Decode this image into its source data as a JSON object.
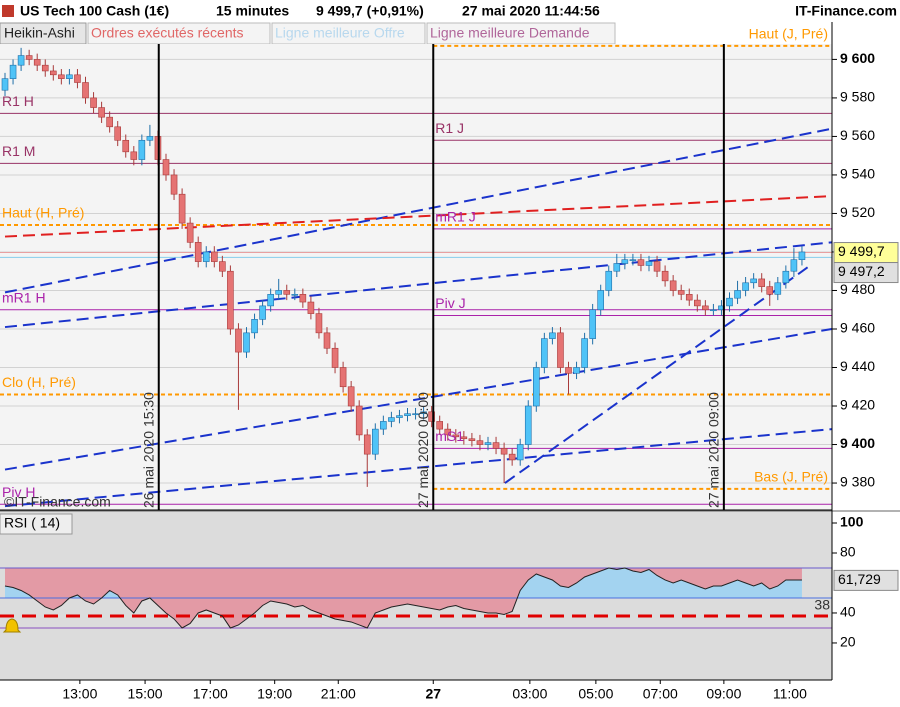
{
  "header": {
    "instrument": "US Tech 100 Cash (1€)",
    "interval": "15 minutes",
    "quote": "9 499,7 (+0,91%)",
    "datetime": "27 mai 2020 11:44:56",
    "brand": "IT-Finance.com"
  },
  "toolbar": [
    "Heikin-Ashi",
    "Ordres exécutés récents",
    "Ligne meilleure Offre",
    "Ligne meilleure Demande"
  ],
  "chart_data": [
    {
      "type": "candlestick",
      "up_color": "#4fc3f7",
      "down_color": "#e57373",
      "grid": true,
      "ylim": [
        9366,
        9608
      ],
      "yticks": [
        {
          "value": 9380,
          "label": "9 380"
        },
        {
          "value": 9400,
          "label": "9 400"
        },
        {
          "value": 9420,
          "label": "9 420"
        },
        {
          "value": 9440,
          "label": "9 440"
        },
        {
          "value": 9460,
          "label": "9 460"
        },
        {
          "value": 9480,
          "label": "9 480"
        },
        {
          "value": 9500,
          "label": "9 500"
        },
        {
          "value": 9520,
          "label": "9 520"
        },
        {
          "value": 9540,
          "label": "9 540"
        },
        {
          "value": 9560,
          "label": "9 560"
        },
        {
          "value": 9580,
          "label": "9 580"
        },
        {
          "value": 9600,
          "label": "9 600"
        }
      ],
      "xticks": [
        {
          "value": 9.3,
          "label": "13:00"
        },
        {
          "value": 17.4,
          "label": "15:00"
        },
        {
          "value": 25.5,
          "label": "17:00"
        },
        {
          "value": 33.5,
          "label": "19:00"
        },
        {
          "value": 41.4,
          "label": "21:00"
        },
        {
          "value": 53.2,
          "label": "27"
        },
        {
          "value": 65.2,
          "label": "03:00"
        },
        {
          "value": 73.4,
          "label": "05:00"
        },
        {
          "value": 81.4,
          "label": "07:00"
        },
        {
          "value": 89.3,
          "label": "09:00"
        },
        {
          "value": 97.5,
          "label": "11:00"
        }
      ],
      "open": [
        9584,
        9590,
        9597,
        9602,
        9600,
        9597,
        9594,
        9592,
        9590,
        9592,
        9588,
        9580,
        9575,
        9570,
        9565,
        9558,
        9552,
        9548,
        9558,
        9560,
        9548,
        9540,
        9530,
        9515,
        9505,
        9495,
        9500,
        9495,
        9490,
        9460,
        9448,
        9458,
        9465,
        9472,
        9478,
        9480,
        9478,
        9478,
        9474,
        9468,
        9458,
        9450,
        9440,
        9430,
        9420,
        9405,
        9395,
        9408,
        9412,
        9414,
        9415,
        9416,
        9416,
        9417,
        9412,
        9408,
        9405,
        9404,
        9403,
        9402,
        9400,
        9401,
        9398,
        9395,
        9392,
        9400,
        9420,
        9440,
        9455,
        9458,
        9440,
        9437,
        9440,
        9455,
        9470,
        9480,
        9490,
        9494,
        9496,
        9496,
        9493,
        9495,
        9490,
        9485,
        9480,
        9478,
        9475,
        9472,
        9470,
        9470,
        9472,
        9476,
        9480,
        9484,
        9486,
        9482,
        9478,
        9484,
        9490,
        9496
      ],
      "high": [
        9593,
        9600,
        9606,
        9605,
        9603,
        9600,
        9597,
        9595,
        9595,
        9595,
        9591,
        9583,
        9578,
        9573,
        9568,
        9561,
        9555,
        9561,
        9566,
        9563,
        9551,
        9543,
        9533,
        9518,
        9508,
        9503,
        9503,
        9498,
        9493,
        9463,
        9461,
        9468,
        9475,
        9481,
        9486,
        9483,
        9481,
        9481,
        9477,
        9471,
        9461,
        9453,
        9443,
        9433,
        9423,
        9408,
        9411,
        9415,
        9417,
        9418,
        9419,
        9419,
        9420,
        9420,
        9415,
        9411,
        9408,
        9407,
        9406,
        9405,
        9404,
        9404,
        9401,
        9398,
        9403,
        9423,
        9443,
        9458,
        9461,
        9461,
        9443,
        9443,
        9458,
        9473,
        9483,
        9493,
        9499,
        9499,
        9499,
        9499,
        9498,
        9498,
        9493,
        9488,
        9483,
        9481,
        9478,
        9475,
        9473,
        9475,
        9479,
        9485,
        9487,
        9489,
        9489,
        9485,
        9487,
        9493,
        9502,
        9503
      ],
      "low": [
        9581,
        9587,
        9594,
        9597,
        9594,
        9591,
        9589,
        9587,
        9587,
        9585,
        9577,
        9572,
        9567,
        9562,
        9555,
        9549,
        9545,
        9545,
        9555,
        9545,
        9537,
        9527,
        9512,
        9502,
        9492,
        9492,
        9492,
        9487,
        9457,
        9418,
        9445,
        9455,
        9462,
        9469,
        9475,
        9475,
        9475,
        9471,
        9465,
        9455,
        9447,
        9437,
        9427,
        9417,
        9402,
        9378,
        9392,
        9405,
        9409,
        9411,
        9412,
        9413,
        9413,
        9409,
        9405,
        9402,
        9401,
        9400,
        9399,
        9397,
        9397,
        9395,
        9380,
        9389,
        9389,
        9397,
        9417,
        9437,
        9452,
        9437,
        9426,
        9434,
        9437,
        9452,
        9467,
        9477,
        9487,
        9491,
        9493,
        9490,
        9490,
        9487,
        9482,
        9477,
        9475,
        9472,
        9469,
        9467,
        9467,
        9467,
        9469,
        9473,
        9477,
        9481,
        9479,
        9472,
        9475,
        9481,
        9487,
        9493
      ],
      "close": [
        9590,
        9597,
        9602,
        9600,
        9597,
        9594,
        9592,
        9590,
        9592,
        9588,
        9580,
        9575,
        9570,
        9565,
        9558,
        9552,
        9548,
        9558,
        9560,
        9548,
        9540,
        9530,
        9515,
        9505,
        9495,
        9500,
        9495,
        9490,
        9460,
        9448,
        9458,
        9465,
        9472,
        9478,
        9480,
        9478,
        9478,
        9474,
        9468,
        9458,
        9450,
        9440,
        9430,
        9420,
        9405,
        9395,
        9408,
        9412,
        9414,
        9415,
        9416,
        9416,
        9417,
        9412,
        9408,
        9405,
        9404,
        9403,
        9402,
        9400,
        9401,
        9398,
        9395,
        9392,
        9400,
        9420,
        9440,
        9455,
        9458,
        9440,
        9437,
        9440,
        9455,
        9470,
        9480,
        9490,
        9494,
        9496,
        9496,
        9493,
        9495,
        9490,
        9485,
        9480,
        9478,
        9475,
        9472,
        9470,
        9470,
        9472,
        9476,
        9480,
        9484,
        9486,
        9482,
        9478,
        9484,
        9490,
        9496,
        9500
      ],
      "levels": [
        {
          "name": "R1 H",
          "value": 9572,
          "color": "#993366",
          "style": "solid",
          "label_side": "left"
        },
        {
          "name": "R1 M",
          "value": 9546,
          "color": "#993366",
          "style": "solid",
          "label_side": "left"
        },
        {
          "name": "Haut (H, Pré)",
          "value": 9514,
          "color": "#ff9900",
          "style": "dashed",
          "label_side": "left"
        },
        {
          "name": "mR1 H",
          "value": 9470,
          "color": "#aa22aa",
          "style": "solid",
          "label_side": "left"
        },
        {
          "name": "Clo (H, Pré)",
          "value": 9426,
          "color": "#ff9900",
          "style": "dashed",
          "label_side": "left"
        },
        {
          "name": "Piv H",
          "value": 9369,
          "color": "#aa22aa",
          "style": "solid",
          "label_side": "left"
        },
        {
          "name": "Haut (J, Pré)",
          "value": 9607,
          "color": "#ff9900",
          "style": "dashed",
          "label_side": "right",
          "start": 53.2
        },
        {
          "name": "R1 J",
          "value": 9558,
          "color": "#993366",
          "style": "solid",
          "label_side": "left",
          "start": 53.2
        },
        {
          "name": "mR1 J",
          "value": 9512,
          "color": "#aa22aa",
          "style": "solid",
          "label_side": "left",
          "start": 53.2
        },
        {
          "name": "Piv J",
          "value": 9467,
          "color": "#aa22aa",
          "style": "solid",
          "label_side": "left",
          "start": 53.2
        },
        {
          "name": "mS1",
          "value": 9398,
          "color": "#aa22aa",
          "style": "solid",
          "label_side": "left",
          "start": 53.2
        },
        {
          "name": "Bas (J, Pré)",
          "value": 9377,
          "color": "#ff9900",
          "style": "dashed",
          "label_side": "right",
          "start": 53.2
        }
      ],
      "trend_lines": [
        {
          "x": [
            0,
            102.7
          ],
          "y": [
            9479,
            9564
          ],
          "color": "#1a33cc"
        },
        {
          "x": [
            0,
            102.7
          ],
          "y": [
            9461,
            9505
          ],
          "color": "#1a33cc"
        },
        {
          "x": [
            0,
            102.7
          ],
          "y": [
            9387,
            9460
          ],
          "color": "#1a33cc"
        },
        {
          "x": [
            0,
            102.7
          ],
          "y": [
            9368,
            9408
          ],
          "color": "#1a33cc"
        },
        {
          "x": [
            62.1,
            99.7
          ],
          "y": [
            9380,
            9492
          ],
          "color": "#1a33cc"
        },
        {
          "x": [
            0,
            102.7
          ],
          "y": [
            9508,
            9529
          ],
          "color": "#e02020"
        }
      ],
      "sessions": [
        {
          "x": 19.1,
          "label": "26 mai 2020 15:30"
        },
        {
          "x": 53.2,
          "label": "27 mai 2020 00:00"
        },
        {
          "x": 89.3,
          "label": "27 mai 2020 09:00"
        }
      ],
      "price_labels": [
        {
          "value": 9499.7,
          "label": "9 499,7",
          "color": "#ffff99",
          "line_color": "#e8a0a0"
        },
        {
          "value": 9497.2,
          "label": "9 497,2",
          "color": "#e0e0e0",
          "line_color": "#87ceeb"
        }
      ],
      "copyright": "©IT-Finance.com"
    },
    {
      "type": "line",
      "title": "RSI ( 14)",
      "color": "#222222",
      "above_color": "#e39aa5",
      "below_color": "#a3d3f0",
      "ylim": [
        -4.7,
        108
      ],
      "yticks": [
        20,
        40,
        80,
        100
      ],
      "values": [
        58,
        57,
        55,
        52,
        48,
        44,
        42,
        45,
        50,
        52,
        48,
        46,
        50,
        55,
        52,
        45,
        40,
        48,
        50,
        45,
        40,
        36,
        30,
        33,
        40,
        42,
        40,
        38,
        30,
        32,
        36,
        40,
        45,
        48,
        47,
        46,
        44,
        45,
        42,
        40,
        38,
        36,
        35,
        34,
        32,
        30,
        40,
        42,
        44,
        45,
        46,
        45,
        44,
        43,
        42,
        44,
        45,
        43,
        42,
        41,
        40,
        40,
        39,
        41,
        55,
        62,
        66,
        64,
        62,
        58,
        57,
        60,
        64,
        66,
        68,
        70,
        69,
        70,
        68,
        67,
        69,
        65,
        62,
        60,
        62,
        60,
        58,
        56,
        58,
        58,
        60,
        62,
        60,
        58,
        60,
        56,
        58,
        62,
        62,
        62
      ],
      "levels": [
        {
          "value": 70,
          "color": "#6a5acd",
          "style": "solid"
        },
        {
          "value": 50,
          "color": "#4a6fe0",
          "style": "solid"
        },
        {
          "value": 30,
          "color": "#8a4fbf",
          "style": "solid"
        },
        {
          "value": 38,
          "color": "#e00000",
          "style": "dashed",
          "show_label": true
        }
      ],
      "last_label": {
        "value": 61.729,
        "label": "61,729"
      }
    }
  ]
}
